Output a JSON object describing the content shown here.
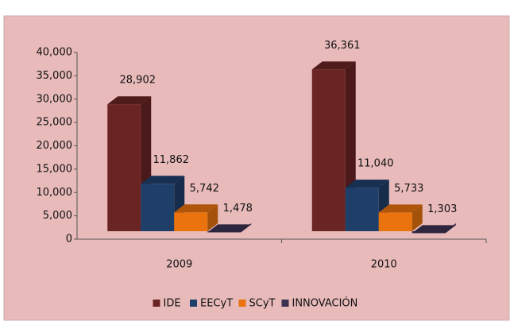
{
  "chart_data": {
    "type": "bar3d",
    "categories": [
      "2009",
      "2010"
    ],
    "series": [
      {
        "name": "IDE",
        "color": "#6b2424",
        "values": [
          28902,
          36361
        ],
        "value_labels": [
          "28,902",
          "36,361"
        ]
      },
      {
        "name": "EECyT",
        "color": "#1f3f6b",
        "values": [
          11862,
          11040
        ],
        "value_labels": [
          "11,862",
          "11,040"
        ]
      },
      {
        "name": "SCyT",
        "color": "#ea730e",
        "values": [
          5742,
          5733
        ],
        "value_labels": [
          "5,742",
          "5,733"
        ]
      },
      {
        "name": "INNOVACIÓN",
        "color": "#3d3152",
        "values": [
          1478,
          1303
        ],
        "value_labels": [
          "1,478",
          "1,303"
        ]
      }
    ],
    "ylim": [
      0,
      40000
    ],
    "yticks": [
      0,
      {
        "value": 5000,
        "label": "5,000"
      },
      {
        "value": 10000,
        "label": "10,000"
      },
      {
        "value": 15000,
        "label": "15,000"
      },
      {
        "value": 20000,
        "label": "20,000"
      },
      {
        "value": 25000,
        "label": "25,000"
      },
      {
        "value": 30000,
        "label": "30,000"
      },
      {
        "value": 35000,
        "label": "35,000"
      },
      {
        "value": 40000,
        "label": "40,000"
      }
    ],
    "legend": "bottom",
    "grid": false
  }
}
